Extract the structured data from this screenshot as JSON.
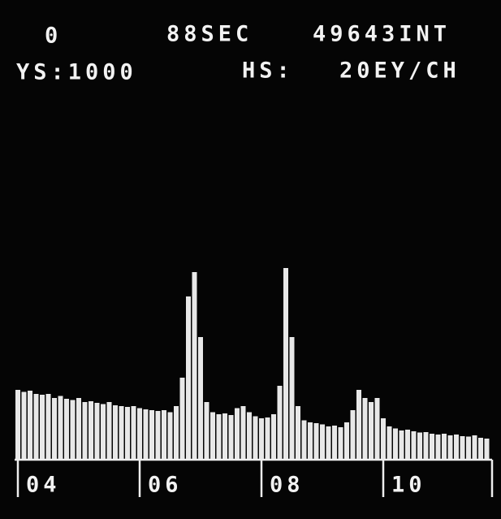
{
  "chart_data": {
    "type": "bar",
    "annotations": [
      "0",
      "88SEC",
      "49643INT",
      "YS:1000",
      "HS:",
      "20EY/CH"
    ],
    "x": [
      4.0,
      4.1,
      4.2,
      4.3,
      4.4,
      4.5,
      4.6,
      4.7,
      4.8,
      4.9,
      5.0,
      5.1,
      5.2,
      5.3,
      5.4,
      5.5,
      5.6,
      5.7,
      5.8,
      5.9,
      6.0,
      6.1,
      6.2,
      6.3,
      6.4,
      6.5,
      6.6,
      6.7,
      6.8,
      6.9,
      7.0,
      7.1,
      7.2,
      7.3,
      7.4,
      7.5,
      7.6,
      7.7,
      7.8,
      7.9,
      8.0,
      8.1,
      8.2,
      8.3,
      8.4,
      8.5,
      8.6,
      8.7,
      8.8,
      8.9,
      9.0,
      9.1,
      9.2,
      9.3,
      9.4,
      9.5,
      9.6,
      9.7,
      9.8,
      9.9,
      10.0,
      10.1,
      10.2,
      10.3,
      10.4,
      10.5,
      10.6,
      10.7,
      10.8,
      10.9,
      11.0,
      11.1,
      11.2,
      11.3,
      11.4,
      11.5,
      11.6,
      11.7
    ],
    "values": [
      170,
      165,
      168,
      160,
      158,
      160,
      150,
      155,
      148,
      145,
      150,
      140,
      142,
      138,
      135,
      140,
      132,
      130,
      128,
      130,
      125,
      122,
      120,
      118,
      120,
      115,
      130,
      200,
      400,
      460,
      300,
      140,
      115,
      110,
      112,
      108,
      125,
      130,
      115,
      105,
      100,
      102,
      110,
      180,
      470,
      300,
      130,
      95,
      90,
      88,
      85,
      80,
      82,
      78,
      90,
      120,
      170,
      150,
      140,
      150,
      100,
      80,
      75,
      70,
      72,
      68,
      65,
      66,
      62,
      60,
      62,
      58,
      60,
      56,
      55,
      58,
      52,
      50
    ],
    "color": "#e8e8e8",
    "xlim": [
      4,
      11.8
    ],
    "ylim": [
      0,
      1000
    ],
    "xticks": [
      {
        "value": 4,
        "label": "04"
      },
      {
        "value": 6,
        "label": "06"
      },
      {
        "value": 8,
        "label": "08"
      },
      {
        "value": 10,
        "label": "10"
      }
    ]
  }
}
